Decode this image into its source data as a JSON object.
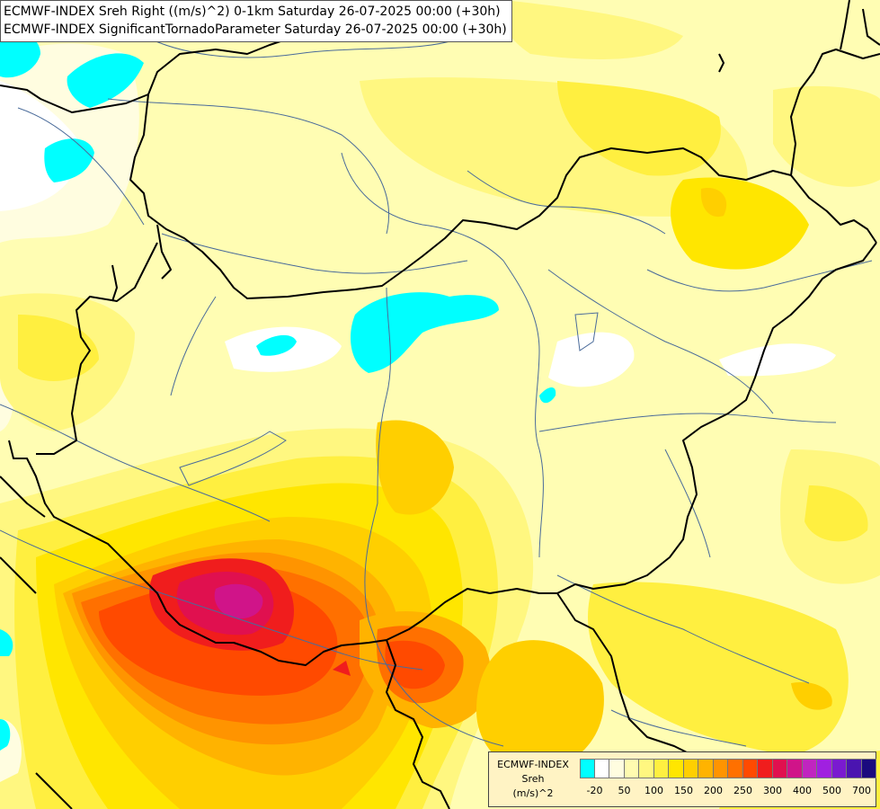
{
  "header": {
    "line1": "ECMWF-INDEX Sreh Right ((m/s)^2) 0-1km Saturday 26-07-2025 00:00 (+30h)",
    "line2": "ECMWF-INDEX SignificantTornadoParameter Saturday 26-07-2025 00:00 (+30h)"
  },
  "legend": {
    "source": "ECMWF-INDEX",
    "variable": "Sreh",
    "unit": "(m/s)^2",
    "colors": [
      "#00ffff",
      "#ffffff",
      "#fffde0",
      "#fffbb0",
      "#fff780",
      "#ffef40",
      "#ffe600",
      "#ffcf00",
      "#ffb300",
      "#ff9400",
      "#ff7000",
      "#ff4a00",
      "#f01d1d",
      "#e0104f",
      "#d01489",
      "#c025c0",
      "#a020e0",
      "#7a1ad0",
      "#4a14b0",
      "#1a0a7e"
    ],
    "tick_labels": [
      "-20",
      "50",
      "100",
      "150",
      "200",
      "250",
      "300",
      "400",
      "500",
      "700"
    ],
    "tick_positions": [
      1,
      3,
      5,
      7,
      9,
      11,
      13,
      15,
      17,
      19
    ]
  },
  "map_colors": {
    "base": "#fffdb3",
    "pale": "#fffde0",
    "light_yellow": "#fff780",
    "yellow": "#ffef40",
    "gold": "#ffe600",
    "amber": "#ffcf00",
    "orange_light": "#ffb300",
    "orange": "#ff9400",
    "orange_dark": "#ff7000",
    "red_orange": "#ff4a00",
    "red": "#f01d1d",
    "crimson": "#e0104f",
    "magenta": "#d01489",
    "cyan": "#00ffff",
    "white": "#ffffff",
    "border": "#000000",
    "river": "#4a6b9a"
  }
}
